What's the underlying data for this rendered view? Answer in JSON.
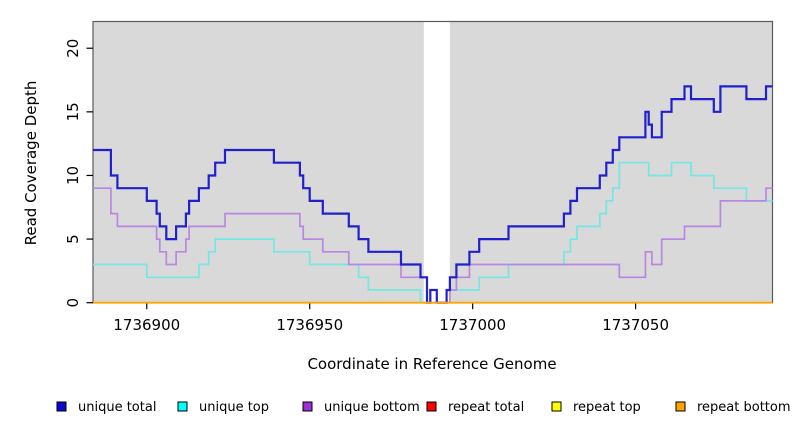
{
  "chart_data": {
    "type": "step-line",
    "xlabel": "Coordinate in Reference Genome",
    "ylabel": "Read Coverage Depth",
    "xlim": [
      1736883.5,
      1737092
    ],
    "ylim": [
      0,
      22.1
    ],
    "x_ticks": [
      {
        "value": 1736900,
        "label": "1736900"
      },
      {
        "value": 1736950,
        "label": "1736950"
      },
      {
        "value": 1737000,
        "label": "1737000"
      },
      {
        "value": 1737050,
        "label": "1737050"
      }
    ],
    "y_ticks": [
      {
        "value": 0,
        "label": "0"
      },
      {
        "value": 5,
        "label": "5"
      },
      {
        "value": 10,
        "label": "10"
      },
      {
        "value": 15,
        "label": "15"
      },
      {
        "value": 20,
        "label": "20"
      }
    ],
    "plot_bg": "#d9d9d9",
    "frame_color": "#5a5a5a",
    "highlight_band": {
      "x_start": 1736985,
      "x_end": 1736993,
      "color": "#ffffff"
    },
    "series": [
      {
        "name": "repeat total",
        "color": "#cc0000",
        "width": 1.5,
        "points": [
          [
            1736884,
            0
          ],
          [
            1737092,
            0
          ]
        ]
      },
      {
        "name": "repeat top",
        "color": "#ffff00",
        "width": 1.5,
        "points": [
          [
            1736884,
            0
          ],
          [
            1737092,
            0
          ]
        ]
      },
      {
        "name": "unique top",
        "color": "#74e7e4",
        "width": 1.7,
        "points": [
          [
            1736884,
            3
          ],
          [
            1736900,
            2
          ],
          [
            1736916,
            3
          ],
          [
            1736919,
            4
          ],
          [
            1736921,
            5
          ],
          [
            1736939,
            4
          ],
          [
            1736950,
            3
          ],
          [
            1736965,
            2
          ],
          [
            1736968,
            1
          ],
          [
            1736984,
            0
          ],
          [
            1736992,
            1
          ],
          [
            1737002,
            2
          ],
          [
            1737011,
            3
          ],
          [
            1737028,
            4
          ],
          [
            1737030,
            5
          ],
          [
            1737032,
            6
          ],
          [
            1737039,
            7
          ],
          [
            1737041,
            8
          ],
          [
            1737043,
            9
          ],
          [
            1737045,
            11
          ],
          [
            1737054,
            10
          ],
          [
            1737061,
            11
          ],
          [
            1737067,
            10
          ],
          [
            1737074,
            9
          ],
          [
            1737084,
            8
          ],
          [
            1737092,
            8
          ]
        ]
      },
      {
        "name": "unique bottom",
        "color": "#b987e0",
        "width": 1.7,
        "points": [
          [
            1736884,
            9
          ],
          [
            1736889,
            7
          ],
          [
            1736891,
            6
          ],
          [
            1736903,
            5
          ],
          [
            1736904,
            4
          ],
          [
            1736906,
            3
          ],
          [
            1736909,
            4
          ],
          [
            1736912,
            5
          ],
          [
            1736913,
            6
          ],
          [
            1736924,
            7
          ],
          [
            1736947,
            6
          ],
          [
            1736948,
            5
          ],
          [
            1736954,
            4
          ],
          [
            1736962,
            3
          ],
          [
            1736978,
            2
          ],
          [
            1736986,
            0
          ],
          [
            1736987,
            1
          ],
          [
            1736989,
            0
          ],
          [
            1736993,
            1
          ],
          [
            1736995,
            2
          ],
          [
            1736999,
            3
          ],
          [
            1737045,
            2
          ],
          [
            1737053,
            4
          ],
          [
            1737055,
            3
          ],
          [
            1737058,
            5
          ],
          [
            1737065,
            6
          ],
          [
            1737076,
            8
          ],
          [
            1737090,
            9
          ],
          [
            1737092,
            9
          ]
        ]
      },
      {
        "name": "unique total",
        "color": "#2020cd",
        "width": 2.2,
        "points": [
          [
            1736884,
            12
          ],
          [
            1736889,
            10
          ],
          [
            1736891,
            9
          ],
          [
            1736900,
            8
          ],
          [
            1736903,
            7
          ],
          [
            1736904,
            6
          ],
          [
            1736906,
            5
          ],
          [
            1736909,
            6
          ],
          [
            1736912,
            7
          ],
          [
            1736913,
            8
          ],
          [
            1736916,
            9
          ],
          [
            1736919,
            10
          ],
          [
            1736921,
            11
          ],
          [
            1736924,
            12
          ],
          [
            1736939,
            11
          ],
          [
            1736947,
            10
          ],
          [
            1736948,
            9
          ],
          [
            1736950,
            8
          ],
          [
            1736954,
            7
          ],
          [
            1736962,
            6
          ],
          [
            1736965,
            5
          ],
          [
            1736968,
            4
          ],
          [
            1736978,
            3
          ],
          [
            1736984,
            2
          ],
          [
            1736986,
            0
          ],
          [
            1736987,
            1
          ],
          [
            1736989,
            0
          ],
          [
            1736992,
            1
          ],
          [
            1736993,
            2
          ],
          [
            1736995,
            3
          ],
          [
            1736999,
            4
          ],
          [
            1737002,
            5
          ],
          [
            1737011,
            6
          ],
          [
            1737028,
            7
          ],
          [
            1737030,
            8
          ],
          [
            1737032,
            9
          ],
          [
            1737039,
            10
          ],
          [
            1737041,
            11
          ],
          [
            1737043,
            12
          ],
          [
            1737045,
            13
          ],
          [
            1737053,
            15
          ],
          [
            1737054,
            14
          ],
          [
            1737055,
            13
          ],
          [
            1737058,
            15
          ],
          [
            1737061,
            16
          ],
          [
            1737065,
            17
          ],
          [
            1737067,
            16
          ],
          [
            1737074,
            15
          ],
          [
            1737076,
            17
          ],
          [
            1737084,
            16
          ],
          [
            1737090,
            17
          ],
          [
            1737092,
            17
          ]
        ]
      },
      {
        "name": "repeat bottom",
        "color": "#ffa500",
        "width": 1.8,
        "points": [
          [
            1736884,
            0
          ],
          [
            1737092,
            0
          ]
        ]
      }
    ]
  },
  "legend": {
    "items": [
      {
        "label": "unique total",
        "color": "#0b0bcf"
      },
      {
        "label": "unique top",
        "color": "#00ffff"
      },
      {
        "label": "unique bottom",
        "color": "#9d2fd6"
      },
      {
        "label": "repeat total",
        "color": "#ff0000"
      },
      {
        "label": "repeat top",
        "color": "#ffff00"
      },
      {
        "label": "repeat bottom",
        "color": "#ffa500"
      }
    ]
  }
}
